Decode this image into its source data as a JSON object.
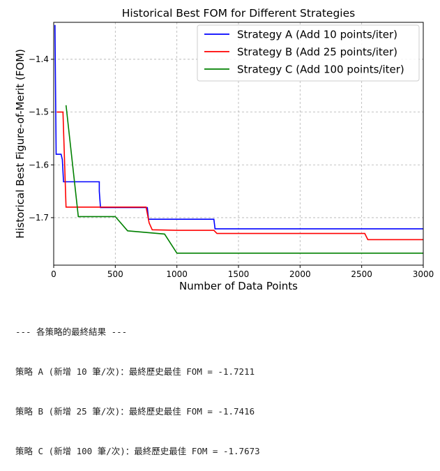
{
  "chart_data": {
    "type": "line",
    "title": "Historical Best FOM for Different Strategies",
    "xlabel": "Number of Data Points",
    "ylabel": "Historical Best Figure-of-Merit (FOM)",
    "xlim": [
      0,
      3000
    ],
    "ylim": [
      -1.79,
      -1.33
    ],
    "xticks": [
      0,
      500,
      1000,
      1500,
      2000,
      2500,
      3000
    ],
    "yticks": [
      -1.4,
      -1.5,
      -1.6,
      -1.7
    ],
    "ytick_labels": [
      "−1.4",
      "−1.5",
      "−1.6",
      "−1.7"
    ],
    "grid": true,
    "legend_position": "top-right",
    "series": [
      {
        "name": "Strategy A (Add 10 points/iter)",
        "color": "#0000ff",
        "x": [
          10,
          20,
          20,
          60,
          70,
          80,
          370,
          370,
          380,
          760,
          770,
          770,
          1300,
          1310,
          3000
        ],
        "y": [
          -1.335,
          -1.58,
          -1.58,
          -1.58,
          -1.59,
          -1.632,
          -1.632,
          -1.65,
          -1.681,
          -1.681,
          -1.703,
          -1.703,
          -1.703,
          -1.7211,
          -1.7211
        ]
      },
      {
        "name": "Strategy B (Add 25 points/iter)",
        "color": "#ff0000",
        "x": [
          25,
          75,
          100,
          750,
          775,
          800,
          1000,
          1300,
          1325,
          2525,
          2550,
          3000
        ],
        "y": [
          -1.5,
          -1.5,
          -1.68,
          -1.68,
          -1.71,
          -1.723,
          -1.724,
          -1.724,
          -1.73,
          -1.73,
          -1.7416,
          -1.7416
        ]
      },
      {
        "name": "Strategy C (Add 100 points/iter)",
        "color": "#008000",
        "x": [
          100,
          200,
          500,
          600,
          900,
          1000,
          3000
        ],
        "y": [
          -1.487,
          -1.698,
          -1.698,
          -1.725,
          -1.731,
          -1.7673,
          -1.7673
        ]
      }
    ]
  },
  "console": {
    "lines": [
      "--- 各策略的最終結果 ---",
      "策略 A (新增 10 筆/次)：最終歷史最佳 FOM = -1.7211",
      "策略 B (新增 25 筆/次)：最終歷史最佳 FOM = -1.7416",
      "策略 C (新增 100 筆/次)：最終歷史最佳 FOM = -1.7673"
    ]
  }
}
